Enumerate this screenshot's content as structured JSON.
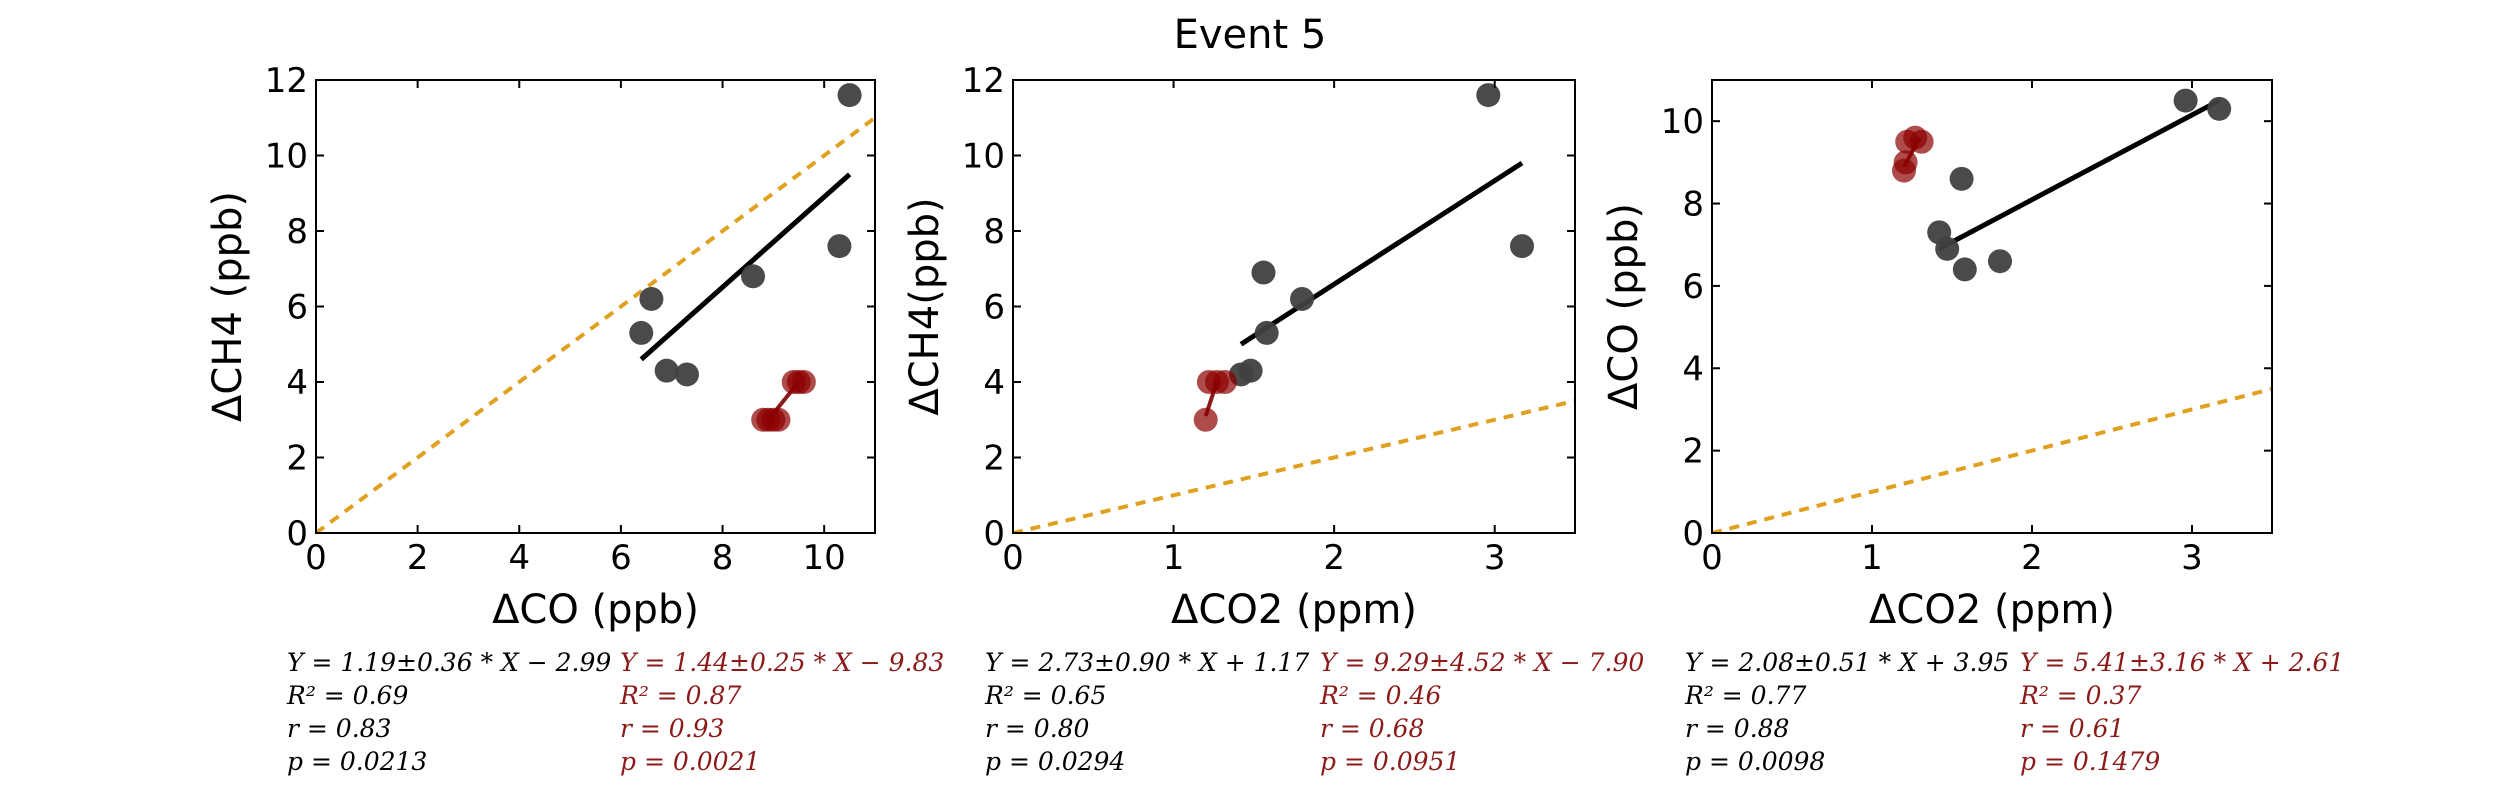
{
  "figure_title": "Event 5",
  "colors": {
    "black_series": "#404040",
    "red_series": "#8b0000",
    "fit_black": "#000000",
    "fit_red": "#8b1a1a",
    "one_to_one": "#e0a020",
    "red_text": "#8b1a1a"
  },
  "chart_data": [
    {
      "type": "scatter",
      "xlabel": "ΔCO (ppb)",
      "ylabel": "ΔCH4 (ppb)",
      "xlim": [
        0,
        11
      ],
      "ylim": [
        0,
        12
      ],
      "xticks": [
        "0",
        "2",
        "4",
        "6",
        "8",
        "10"
      ],
      "xtick_values": [
        0,
        2,
        4,
        6,
        8,
        10
      ],
      "yticks": [
        "0",
        "2",
        "4",
        "6",
        "8",
        "10",
        "12"
      ],
      "ytick_values": [
        0,
        2,
        4,
        6,
        8,
        10,
        12
      ],
      "grid": false,
      "one_to_one_line": true,
      "series": [
        {
          "color": "black",
          "points": [
            [
              6.4,
              5.3
            ],
            [
              6.6,
              6.2
            ],
            [
              6.9,
              4.3
            ],
            [
              7.3,
              4.2
            ],
            [
              8.6,
              6.8
            ],
            [
              10.3,
              7.6
            ],
            [
              10.5,
              11.6
            ]
          ],
          "fit": {
            "x": [
              6.4,
              10.5
            ],
            "y": [
              4.6,
              9.5
            ]
          }
        },
        {
          "color": "red",
          "points": [
            [
              8.8,
              3.0
            ],
            [
              8.9,
              3.0
            ],
            [
              9.0,
              3.0
            ],
            [
              9.1,
              3.0
            ],
            [
              9.4,
              4.0
            ],
            [
              9.5,
              4.0
            ],
            [
              9.6,
              4.0
            ]
          ],
          "fit": {
            "x": [
              8.9,
              9.5
            ],
            "y": [
              3.0,
              4.0
            ]
          }
        }
      ],
      "stats_black": [
        "Y = 1.19±0.36 * X − 2.99",
        "R² = 0.69",
        "r = 0.83",
        "p = 0.0213"
      ],
      "stats_red": [
        "Y = 1.44±0.25 * X − 9.83",
        "R² = 0.87",
        "r = 0.93",
        "p = 0.0021"
      ]
    },
    {
      "type": "scatter",
      "xlabel": "ΔCO2 (ppm)",
      "ylabel": "ΔCH4(ppb)",
      "xlim": [
        0,
        3.5
      ],
      "ylim": [
        0,
        12
      ],
      "xticks": [
        "0",
        "1",
        "2",
        "3"
      ],
      "xtick_values": [
        0,
        1,
        2,
        3
      ],
      "yticks": [
        "0",
        "2",
        "4",
        "6",
        "8",
        "10",
        "12"
      ],
      "ytick_values": [
        0,
        2,
        4,
        6,
        8,
        10,
        12
      ],
      "grid": false,
      "one_to_one_line": true,
      "series": [
        {
          "color": "black",
          "points": [
            [
              1.42,
              4.2
            ],
            [
              1.48,
              4.3
            ],
            [
              1.56,
              6.9
            ],
            [
              1.58,
              5.3
            ],
            [
              1.8,
              6.2
            ],
            [
              2.96,
              11.6
            ],
            [
              3.17,
              7.6
            ]
          ],
          "fit": {
            "x": [
              1.42,
              3.17
            ],
            "y": [
              5.0,
              9.8
            ]
          }
        },
        {
          "color": "red",
          "points": [
            [
              1.2,
              3.0
            ],
            [
              1.22,
              4.0
            ],
            [
              1.27,
              4.0
            ],
            [
              1.32,
              4.0
            ]
          ],
          "fit": {
            "x": [
              1.2,
              1.27
            ],
            "y": [
              3.1,
              4.0
            ]
          }
        }
      ],
      "stats_black": [
        "Y = 2.73±0.90 * X + 1.17",
        "R² = 0.65",
        "r = 0.80",
        "p = 0.0294"
      ],
      "stats_red": [
        "Y = 9.29±4.52 * X − 7.90",
        "R² = 0.46",
        "r = 0.68",
        "p = 0.0951"
      ]
    },
    {
      "type": "scatter",
      "xlabel": "ΔCO2 (ppm)",
      "ylabel": "ΔCO (ppb)",
      "xlim": [
        0,
        3.5
      ],
      "ylim": [
        0,
        11
      ],
      "xticks": [
        "0",
        "1",
        "2",
        "3"
      ],
      "xtick_values": [
        0,
        1,
        2,
        3
      ],
      "yticks": [
        "0",
        "2",
        "4",
        "6",
        "8",
        "10"
      ],
      "ytick_values": [
        0,
        2,
        4,
        6,
        8,
        10
      ],
      "grid": false,
      "one_to_one_line": true,
      "series": [
        {
          "color": "black",
          "points": [
            [
              1.42,
              7.3
            ],
            [
              1.47,
              6.9
            ],
            [
              1.56,
              8.6
            ],
            [
              1.58,
              6.4
            ],
            [
              1.8,
              6.6
            ],
            [
              2.96,
              10.5
            ],
            [
              3.17,
              10.3
            ]
          ],
          "fit": {
            "x": [
              1.42,
              3.17
            ],
            "y": [
              6.9,
              10.5
            ]
          }
        },
        {
          "color": "red",
          "points": [
            [
              1.2,
              8.8
            ],
            [
              1.21,
              9.0
            ],
            [
              1.22,
              9.5
            ],
            [
              1.27,
              9.6
            ],
            [
              1.31,
              9.5
            ]
          ],
          "fit": {
            "x": [
              1.2,
              1.3
            ],
            "y": [
              8.9,
              9.6
            ]
          }
        }
      ],
      "stats_black": [
        "Y = 2.08±0.51 * X + 3.95",
        "R² = 0.77",
        "r = 0.88",
        "p = 0.0098"
      ],
      "stats_red": [
        "Y = 5.41±3.16 * X + 2.61",
        "R² = 0.37",
        "r = 0.61",
        "p = 0.1479"
      ]
    }
  ]
}
